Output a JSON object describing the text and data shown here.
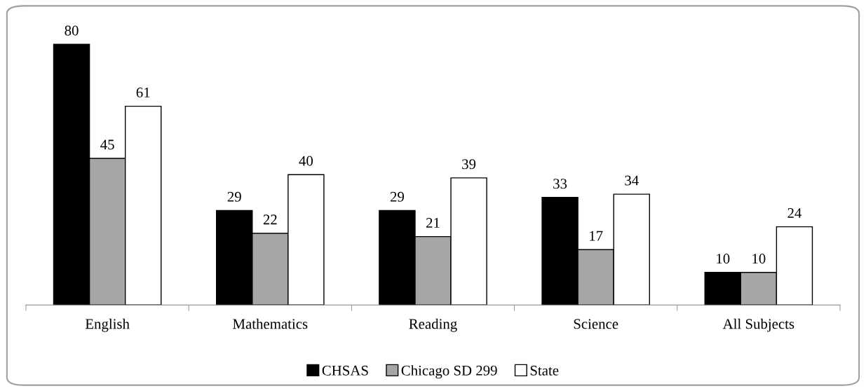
{
  "chart_data": {
    "type": "bar",
    "categories": [
      "English",
      "Mathematics",
      "Reading",
      "Science",
      "All Subjects"
    ],
    "series": [
      {
        "name": "CHSAS",
        "color": "#000000",
        "values": [
          80,
          29,
          29,
          33,
          10
        ]
      },
      {
        "name": "Chicago SD 299",
        "color": "#a6a6a6",
        "values": [
          45,
          22,
          21,
          17,
          10
        ]
      },
      {
        "name": "State",
        "color": "#ffffff",
        "values": [
          61,
          40,
          39,
          34,
          24
        ]
      }
    ],
    "data_labels": true,
    "legend": "bottom",
    "grid": false
  }
}
